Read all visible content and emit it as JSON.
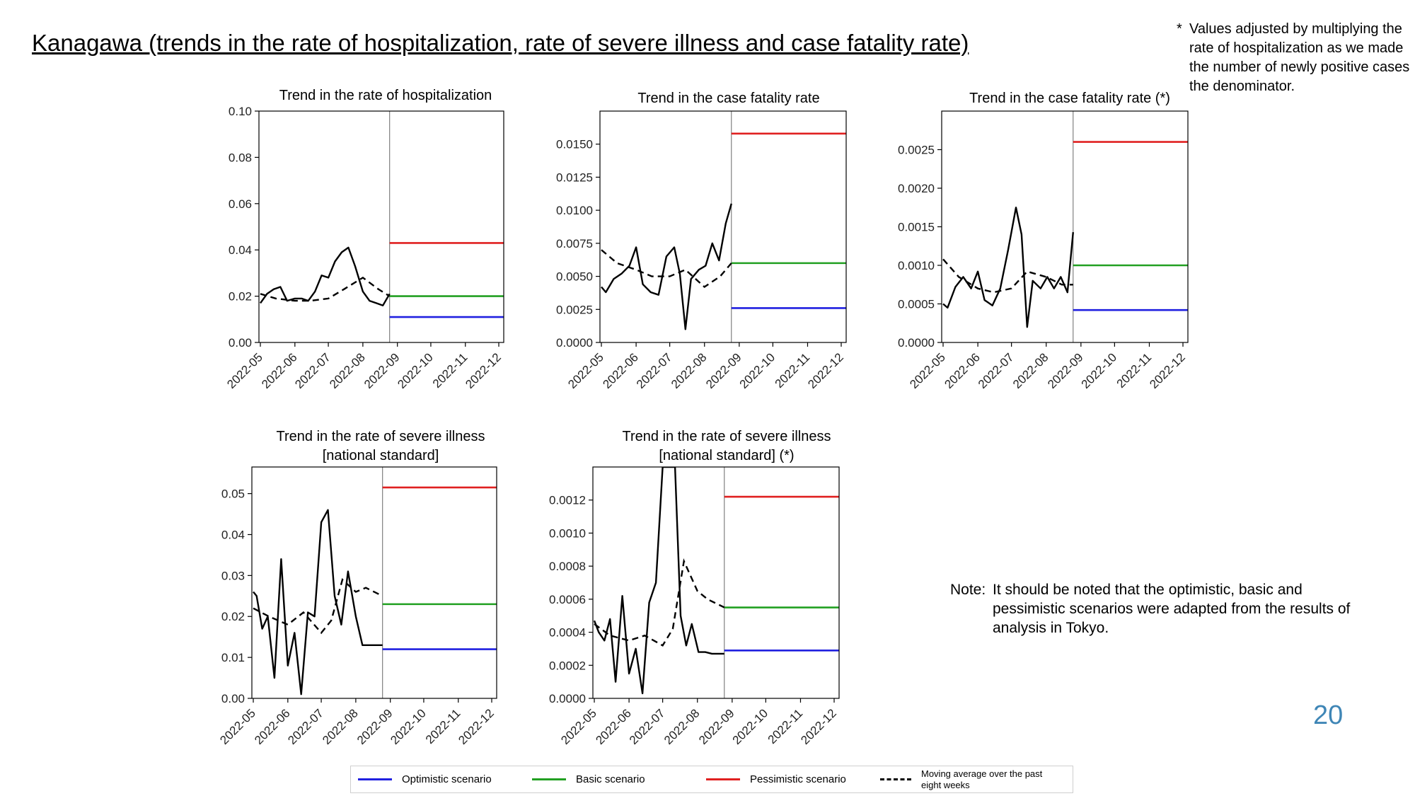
{
  "page": {
    "title": "Kanagawa (trends in the rate of hospitalization, rate of severe illness and case fatality rate)",
    "footnote_mark": "*",
    "footnote": "Values adjusted by multiplying the rate of hospitalization as we made the number of newly positive cases the denominator.",
    "note_label": "Note:",
    "note": "It should be noted that the optimistic, basic and pessimistic scenarios were adapted from the results of analysis in Tokyo.",
    "page_number": "20"
  },
  "colors": {
    "optimistic": "#2020e0",
    "basic": "#22a022",
    "pessimistic": "#e02020",
    "observed": "#000000",
    "moving_average": "#000000"
  },
  "legend": [
    {
      "key": "optimistic",
      "label": "Optimistic scenario",
      "style": "solid"
    },
    {
      "key": "basic",
      "label": "Basic scenario",
      "style": "solid"
    },
    {
      "key": "pessimistic",
      "label": "Pessimistic scenario",
      "style": "solid"
    },
    {
      "key": "moving_average",
      "label": "Moving average over the past eight weeks",
      "style": "dashed"
    }
  ],
  "chart_data": [
    {
      "type": "line",
      "title": "Trend in the rate of hospitalization",
      "x_ticks": [
        "2022-05",
        "2022-06",
        "2022-07",
        "2022-08",
        "2022-09",
        "2022-10",
        "2022-11",
        "2022-12"
      ],
      "xlim": [
        "2022-05",
        "2022-12"
      ],
      "ylim": [
        0,
        0.1
      ],
      "y_ticks": [
        "0.00",
        "0.02",
        "0.04",
        "0.06",
        "0.08",
        "0.10"
      ],
      "divider_x": "2022-08-25",
      "scenario_start": "2022-08-25",
      "scenario_end": "2022-12-31",
      "scenarios": {
        "optimistic": 0.011,
        "basic": 0.02,
        "pessimistic": 0.043
      },
      "observed": {
        "dates": [
          "2022-05-01",
          "2022-05-07",
          "2022-05-13",
          "2022-05-19",
          "2022-05-25",
          "2022-06-01",
          "2022-06-07",
          "2022-06-13",
          "2022-06-19",
          "2022-06-25",
          "2022-07-01",
          "2022-07-07",
          "2022-07-13",
          "2022-07-19",
          "2022-07-25",
          "2022-08-01",
          "2022-08-07",
          "2022-08-13",
          "2022-08-19",
          "2022-08-25"
        ],
        "values": [
          0.017,
          0.021,
          0.023,
          0.024,
          0.018,
          0.019,
          0.019,
          0.018,
          0.022,
          0.029,
          0.028,
          0.035,
          0.039,
          0.041,
          0.033,
          0.022,
          0.018,
          0.017,
          0.016,
          0.021
        ]
      },
      "moving_average": {
        "dates": [
          "2022-05-01",
          "2022-05-15",
          "2022-06-01",
          "2022-06-15",
          "2022-07-01",
          "2022-07-15",
          "2022-08-01",
          "2022-08-15",
          "2022-08-25"
        ],
        "values": [
          0.021,
          0.019,
          0.018,
          0.018,
          0.019,
          0.023,
          0.028,
          0.023,
          0.02
        ]
      }
    },
    {
      "type": "line",
      "title": "Trend in the case fatality rate",
      "x_ticks": [
        "2022-05",
        "2022-06",
        "2022-07",
        "2022-08",
        "2022-09",
        "2022-10",
        "2022-11",
        "2022-12"
      ],
      "xlim": [
        "2022-05",
        "2022-12"
      ],
      "ylim": [
        0,
        0.0175
      ],
      "y_ticks": [
        "0.0000",
        "0.0025",
        "0.0050",
        "0.0075",
        "0.0100",
        "0.0125",
        "0.0150"
      ],
      "divider_x": "2022-08-25",
      "scenario_start": "2022-08-25",
      "scenario_end": "2022-12-31",
      "scenarios": {
        "optimistic": 0.0026,
        "basic": 0.006,
        "pessimistic": 0.0158
      },
      "observed": {
        "dates": [
          "2022-05-01",
          "2022-05-05",
          "2022-05-12",
          "2022-05-19",
          "2022-05-26",
          "2022-06-01",
          "2022-06-07",
          "2022-06-14",
          "2022-06-21",
          "2022-06-28",
          "2022-07-05",
          "2022-07-10",
          "2022-07-15",
          "2022-07-20",
          "2022-07-27",
          "2022-08-02",
          "2022-08-08",
          "2022-08-14",
          "2022-08-20",
          "2022-08-25"
        ],
        "values": [
          0.0042,
          0.0038,
          0.0048,
          0.0052,
          0.0058,
          0.0072,
          0.0044,
          0.0038,
          0.0036,
          0.0065,
          0.0072,
          0.0052,
          0.001,
          0.0048,
          0.0055,
          0.0058,
          0.0075,
          0.0062,
          0.009,
          0.0105
        ]
      },
      "moving_average": {
        "dates": [
          "2022-05-01",
          "2022-05-15",
          "2022-06-01",
          "2022-06-15",
          "2022-07-01",
          "2022-07-15",
          "2022-08-01",
          "2022-08-15",
          "2022-08-25"
        ],
        "values": [
          0.007,
          0.006,
          0.0055,
          0.005,
          0.005,
          0.0055,
          0.0042,
          0.005,
          0.006
        ]
      }
    },
    {
      "type": "line",
      "title": "Trend in the case fatality rate (*)",
      "x_ticks": [
        "2022-05",
        "2022-06",
        "2022-07",
        "2022-08",
        "2022-09",
        "2022-10",
        "2022-11",
        "2022-12"
      ],
      "xlim": [
        "2022-05",
        "2022-12"
      ],
      "ylim": [
        0,
        0.003
      ],
      "y_ticks": [
        "0.0000",
        "0.0005",
        "0.0010",
        "0.0015",
        "0.0020",
        "0.0025"
      ],
      "divider_x": "2022-08-25",
      "scenario_start": "2022-08-25",
      "scenario_end": "2022-12-31",
      "scenarios": {
        "optimistic": 0.00042,
        "basic": 0.001,
        "pessimistic": 0.0026
      },
      "observed": {
        "dates": [
          "2022-05-01",
          "2022-05-05",
          "2022-05-12",
          "2022-05-19",
          "2022-05-26",
          "2022-06-01",
          "2022-06-07",
          "2022-06-14",
          "2022-06-21",
          "2022-06-28",
          "2022-07-05",
          "2022-07-10",
          "2022-07-15",
          "2022-07-20",
          "2022-07-27",
          "2022-08-02",
          "2022-08-08",
          "2022-08-14",
          "2022-08-20",
          "2022-08-25"
        ],
        "values": [
          0.0005,
          0.00045,
          0.00072,
          0.00085,
          0.0007,
          0.00092,
          0.00055,
          0.00048,
          0.0007,
          0.0012,
          0.00175,
          0.0014,
          0.0002,
          0.0008,
          0.0007,
          0.00085,
          0.0007,
          0.00085,
          0.00065,
          0.00143
        ]
      },
      "moving_average": {
        "dates": [
          "2022-05-01",
          "2022-05-15",
          "2022-06-01",
          "2022-06-15",
          "2022-07-01",
          "2022-07-15",
          "2022-08-01",
          "2022-08-15",
          "2022-08-25"
        ],
        "values": [
          0.00108,
          0.00085,
          0.0007,
          0.00065,
          0.0007,
          0.00092,
          0.00085,
          0.00075,
          0.00075
        ]
      }
    },
    {
      "type": "line",
      "title": "Trend in the rate of severe illness",
      "title_line2": "[national standard]",
      "x_ticks": [
        "2022-05",
        "2022-06",
        "2022-07",
        "2022-08",
        "2022-09",
        "2022-10",
        "2022-11",
        "2022-12"
      ],
      "xlim": [
        "2022-05",
        "2022-12"
      ],
      "ylim": [
        0,
        0.0565
      ],
      "y_ticks": [
        "0.00",
        "0.01",
        "0.02",
        "0.03",
        "0.04",
        "0.05"
      ],
      "divider_x": "2022-08-25",
      "scenario_start": "2022-08-25",
      "scenario_end": "2022-12-31",
      "scenarios": {
        "optimistic": 0.012,
        "basic": 0.023,
        "pessimistic": 0.0515
      },
      "observed": {
        "dates": [
          "2022-05-01",
          "2022-05-04",
          "2022-05-09",
          "2022-05-14",
          "2022-05-20",
          "2022-05-26",
          "2022-06-01",
          "2022-06-07",
          "2022-06-13",
          "2022-06-19",
          "2022-06-25",
          "2022-07-01",
          "2022-07-07",
          "2022-07-13",
          "2022-07-19",
          "2022-07-25",
          "2022-08-01",
          "2022-08-07",
          "2022-08-13",
          "2022-08-19",
          "2022-08-25"
        ],
        "values": [
          0.026,
          0.025,
          0.017,
          0.02,
          0.005,
          0.034,
          0.008,
          0.016,
          0.001,
          0.021,
          0.02,
          0.043,
          0.046,
          0.025,
          0.018,
          0.031,
          0.02,
          0.013,
          0.013,
          0.013,
          0.013
        ]
      },
      "moving_average": {
        "dates": [
          "2022-05-01",
          "2022-05-15",
          "2022-06-01",
          "2022-06-15",
          "2022-07-01",
          "2022-07-10",
          "2022-07-20",
          "2022-08-01",
          "2022-08-10",
          "2022-08-25"
        ],
        "values": [
          0.022,
          0.02,
          0.018,
          0.021,
          0.016,
          0.019,
          0.029,
          0.026,
          0.027,
          0.025
        ]
      }
    },
    {
      "type": "line",
      "title": "Trend in the rate of severe illness",
      "title_line2": "[national standard] (*)",
      "x_ticks": [
        "2022-05",
        "2022-06",
        "2022-07",
        "2022-08",
        "2022-09",
        "2022-10",
        "2022-11",
        "2022-12"
      ],
      "xlim": [
        "2022-05",
        "2022-12"
      ],
      "ylim": [
        0,
        0.0014
      ],
      "y_ticks": [
        "0.0000",
        "0.0002",
        "0.0004",
        "0.0006",
        "0.0008",
        "0.0010",
        "0.0012"
      ],
      "divider_x": "2022-08-25",
      "scenario_start": "2022-08-25",
      "scenario_end": "2022-12-31",
      "scenarios": {
        "optimistic": 0.00029,
        "basic": 0.00055,
        "pessimistic": 0.00122
      },
      "observed": {
        "dates": [
          "2022-05-01",
          "2022-05-05",
          "2022-05-10",
          "2022-05-15",
          "2022-05-20",
          "2022-05-26",
          "2022-06-01",
          "2022-06-07",
          "2022-06-13",
          "2022-06-19",
          "2022-06-25",
          "2022-07-01",
          "2022-07-07",
          "2022-07-12",
          "2022-07-17",
          "2022-07-22",
          "2022-07-27",
          "2022-08-02",
          "2022-08-08",
          "2022-08-14",
          "2022-08-20",
          "2022-08-25"
        ],
        "values": [
          0.00047,
          0.0004,
          0.00035,
          0.00048,
          0.0001,
          0.00062,
          0.00015,
          0.0003,
          3e-05,
          0.00058,
          0.0007,
          0.0014,
          0.0014,
          0.0014,
          0.0005,
          0.00032,
          0.00045,
          0.00028,
          0.00028,
          0.00027,
          0.00027,
          0.00027
        ]
      },
      "moving_average": {
        "dates": [
          "2022-05-01",
          "2022-05-15",
          "2022-06-01",
          "2022-06-15",
          "2022-07-01",
          "2022-07-10",
          "2022-07-20",
          "2022-08-01",
          "2022-08-10",
          "2022-08-25"
        ],
        "values": [
          0.00045,
          0.00038,
          0.00035,
          0.00038,
          0.00032,
          0.00042,
          0.00083,
          0.00065,
          0.0006,
          0.00055
        ]
      }
    }
  ]
}
